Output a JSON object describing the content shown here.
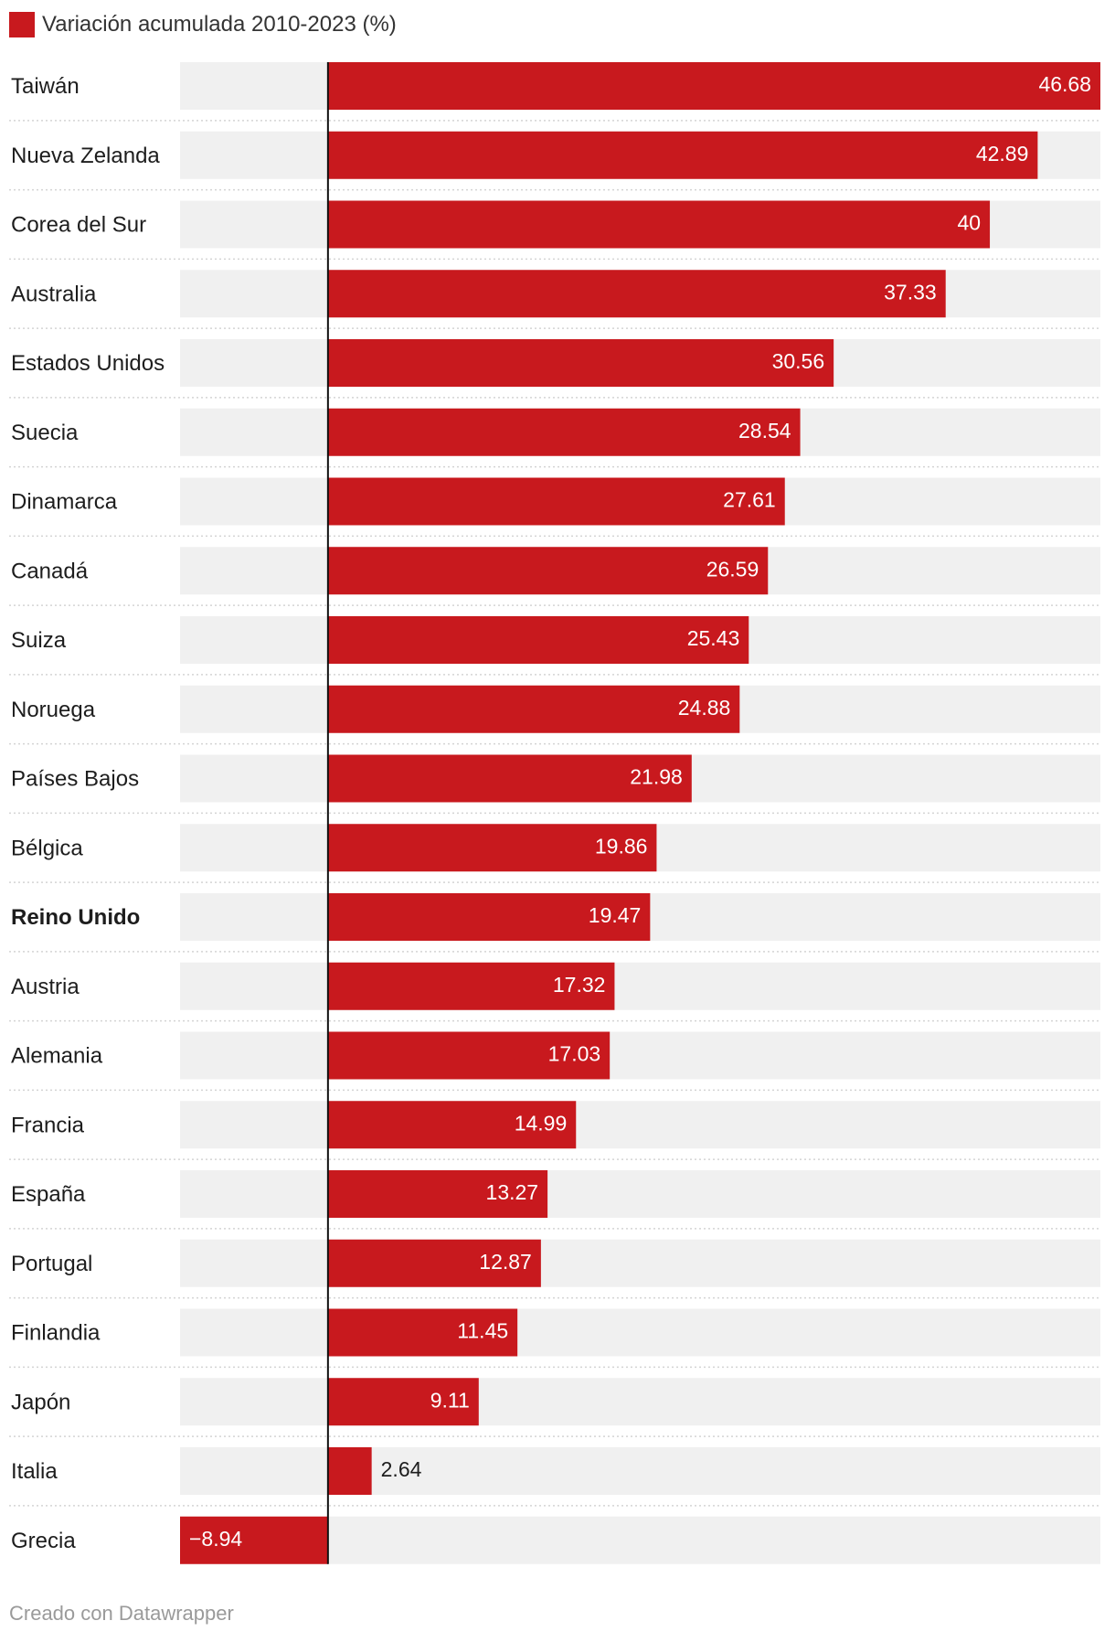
{
  "chart_data": {
    "type": "bar",
    "orientation": "horizontal",
    "legend": {
      "label": "Variación acumulada 2010-2023 (%)",
      "color": "#c8191e"
    },
    "categories": [
      "Taiwán",
      "Nueva Zelanda",
      "Corea del Sur",
      "Australia",
      "Estados Unidos",
      "Suecia",
      "Dinamarca",
      "Canadá",
      "Suiza",
      "Noruega",
      "Países Bajos",
      "Bélgica",
      "Reino Unido",
      "Austria",
      "Alemania",
      "Francia",
      "España",
      "Portugal",
      "Finlandia",
      "Japón",
      "Italia",
      "Grecia"
    ],
    "values": [
      46.68,
      42.89,
      40,
      37.33,
      30.56,
      28.54,
      27.61,
      26.59,
      25.43,
      24.88,
      21.98,
      19.86,
      19.47,
      17.32,
      17.03,
      14.99,
      13.27,
      12.87,
      11.45,
      9.11,
      2.64,
      -8.94
    ],
    "value_labels": [
      "46.68",
      "42.89",
      "40",
      "37.33",
      "30.56",
      "28.54",
      "27.61",
      "26.59",
      "25.43",
      "24.88",
      "21.98",
      "19.86",
      "19.47",
      "17.32",
      "17.03",
      "14.99",
      "13.27",
      "12.87",
      "11.45",
      "9.11",
      "2.64",
      "−8.94"
    ],
    "highlighted": [
      "Reino Unido"
    ],
    "xlim": [
      -8.94,
      46.68
    ],
    "colors": {
      "bar": "#c8191e",
      "track": "#f0f0f0",
      "axis": "#111111",
      "separator": "#d4d4d4"
    }
  },
  "footer": {
    "credit": "Creado con Datawrapper"
  }
}
